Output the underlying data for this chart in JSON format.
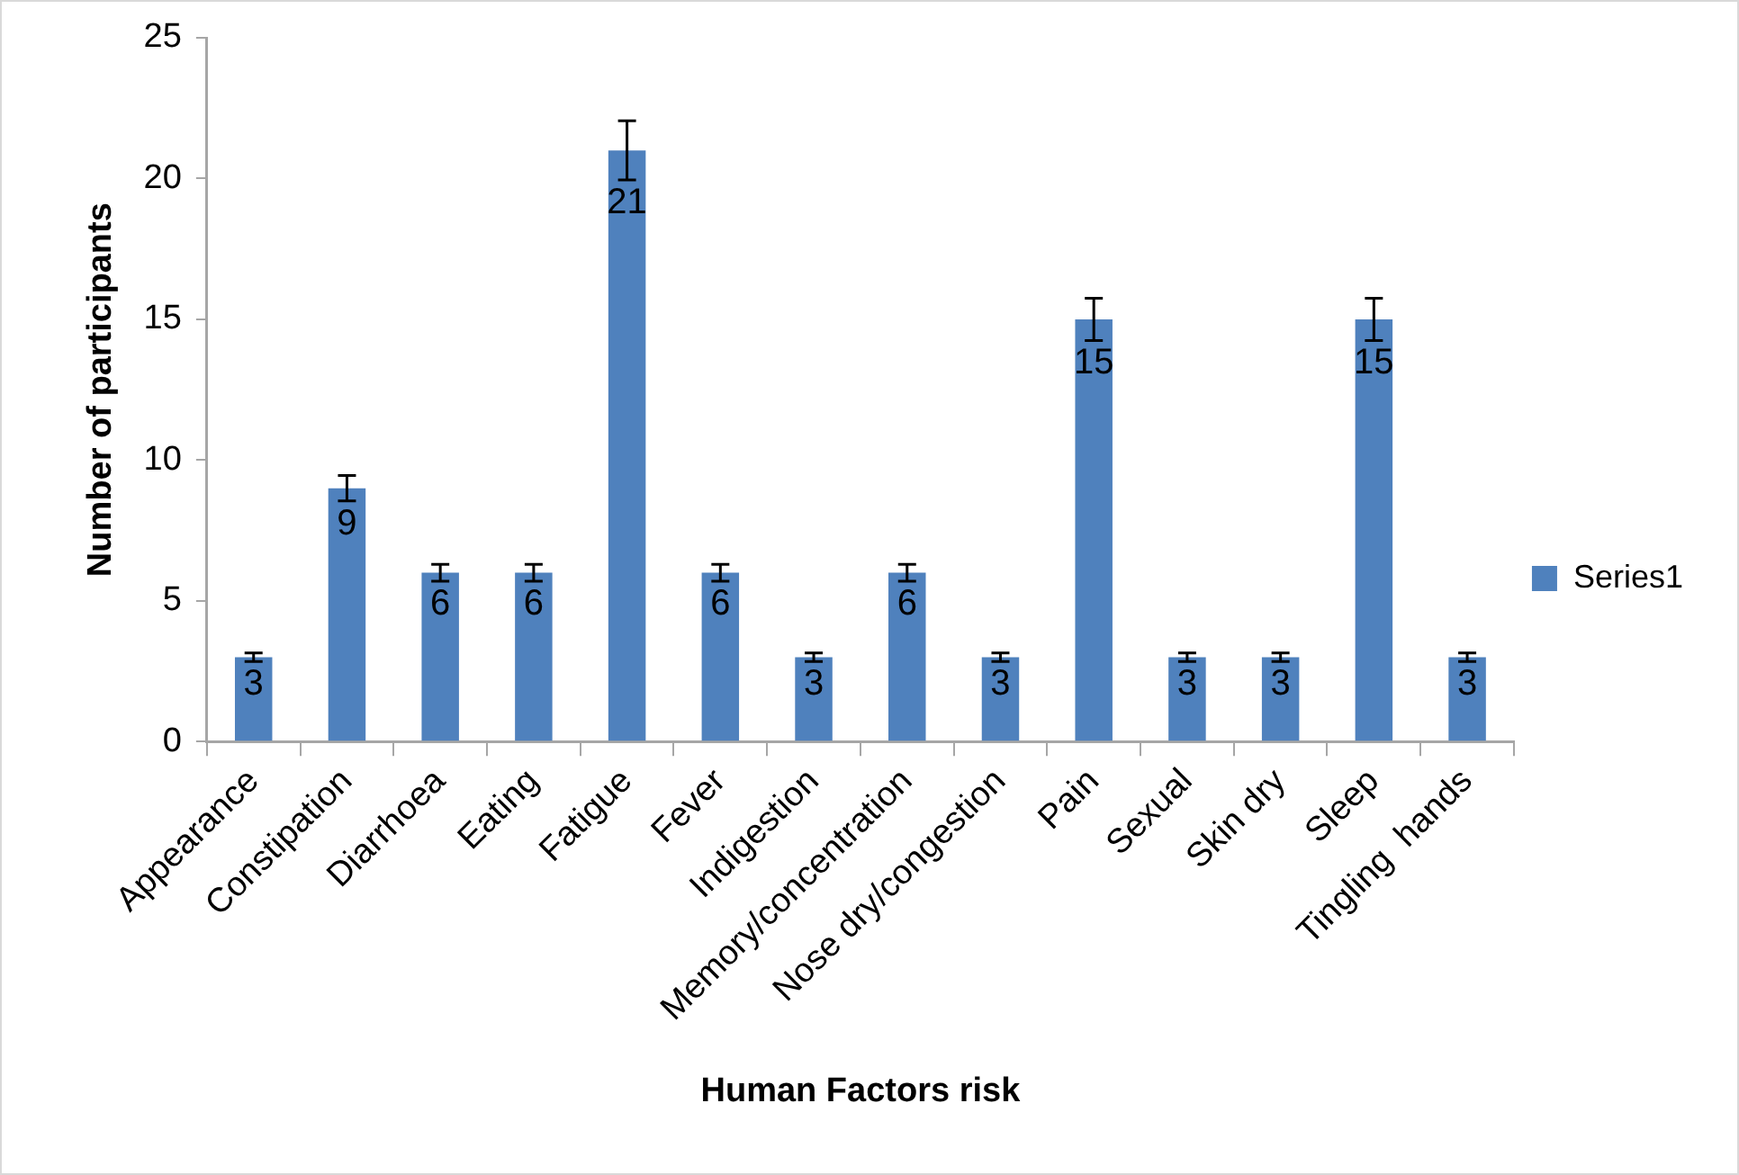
{
  "chart_data": {
    "type": "bar",
    "xlabel": "Human Factors risk",
    "ylabel": "Number of participants",
    "categories": [
      "Appearance",
      "Constipation",
      "Diarrhoea",
      "Eating",
      "Fatigue",
      "Fever",
      "Indigestion",
      "Memory/concentration",
      "Nose dry/congestion",
      "Pain",
      "Sexual",
      "Skin dry",
      "Sleep",
      "Tingling  hands"
    ],
    "series": [
      {
        "name": "Series1",
        "color": "#4f81bd",
        "values": [
          3,
          9,
          6,
          6,
          21,
          6,
          3,
          6,
          3,
          15,
          3,
          3,
          15,
          3
        ],
        "errors": [
          0.15,
          0.45,
          0.3,
          0.3,
          1.05,
          0.3,
          0.15,
          0.3,
          0.15,
          0.75,
          0.15,
          0.15,
          0.75,
          0.15
        ]
      }
    ],
    "ylim": [
      0,
      25
    ],
    "yticks": [
      0,
      5,
      10,
      15,
      20,
      25
    ],
    "grid": false,
    "legend": "right",
    "data_labels": true
  }
}
